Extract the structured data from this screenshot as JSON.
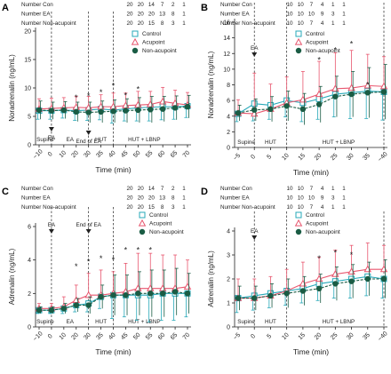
{
  "figure": {
    "colors": {
      "control": "#27a8b8",
      "acupoint": "#e8566e",
      "nonacupoint": "#1a5c44",
      "axis": "#222222"
    },
    "legend": {
      "control": "Control",
      "acupoint": "Acupoint",
      "nonacupoint": "Non-acupoint"
    },
    "count_labels": {
      "con": "Number Con",
      "ea": "Number EA",
      "non": "Number Non-acupoint"
    },
    "time_label": "Time (min)"
  },
  "chart_data": [
    {
      "panel": "A",
      "type": "line",
      "ylabel": "Noradrenalin (ng/mL)",
      "xlabel": "Time (min)",
      "ylim": [
        0,
        20
      ],
      "yticks": [
        0,
        5,
        10,
        15,
        20
      ],
      "x_categories": [
        "−10",
        "0",
        "10",
        "20",
        "30",
        "35",
        "40",
        "45",
        "50",
        "55",
        "60",
        "65",
        "70"
      ],
      "vlines": [
        1,
        4,
        6
      ],
      "phases": [
        {
          "label": "Supine",
          "x": 0.5
        },
        {
          "label": "EA",
          "x": 2.5
        },
        {
          "label": "HUT",
          "x": 5
        },
        {
          "label": "HUT + LBNP",
          "x": 8.5
        }
      ],
      "markers": [
        {
          "label": "EA",
          "x": 1
        },
        {
          "label": "End of EA",
          "x": 4
        }
      ],
      "counts": {
        "con": [
          "20",
          "20",
          "14",
          "7",
          "2",
          "1"
        ],
        "ea": [
          "20",
          "20",
          "20",
          "13",
          "8",
          "1"
        ],
        "non": [
          "20",
          "20",
          "15",
          "8",
          "3",
          "1"
        ]
      },
      "stars": [
        {
          "x": 3,
          "y": 8.3
        },
        {
          "x": 4,
          "y": 8.6
        },
        {
          "x": 5,
          "y": 9.2
        },
        {
          "x": 6,
          "y": 10.4
        },
        {
          "x": 7,
          "y": 8.7
        },
        {
          "x": 8,
          "y": 9.8
        }
      ],
      "series": [
        {
          "key": "control",
          "values": [
            6.0,
            6.0,
            6.1,
            6.0,
            6.1,
            6.3,
            6.1,
            6.3,
            6.5,
            6.6,
            6.7,
            6.7,
            6.8
          ],
          "err": [
            1.5,
            1.5,
            1.4,
            1.7,
            1.8,
            1.9,
            2.3,
            2.1,
            2.3,
            2.4,
            2.3,
            2.2,
            2.0
          ]
        },
        {
          "key": "acupoint",
          "values": [
            6.3,
            6.4,
            6.5,
            6.6,
            6.5,
            6.7,
            6.7,
            6.9,
            7.0,
            7.1,
            7.6,
            7.3,
            7.0
          ],
          "err": [
            1.8,
            1.8,
            1.8,
            1.9,
            2.0,
            2.1,
            2.4,
            2.2,
            2.4,
            2.3,
            2.5,
            2.3,
            2.2
          ]
        },
        {
          "key": "nonacupoint",
          "values": [
            6.1,
            6.0,
            6.1,
            5.8,
            5.7,
            5.8,
            5.9,
            6.0,
            6.1,
            6.2,
            6.3,
            6.5,
            6.7
          ],
          "err": [
            1.6,
            1.5,
            1.5,
            1.7,
            1.8,
            1.9,
            2.0,
            2.1,
            2.2,
            2.3,
            2.2,
            2.1,
            2.0
          ]
        }
      ]
    },
    {
      "panel": "B",
      "type": "line",
      "ylabel": "Noradrenalin (ng/mL)",
      "xlabel": "Time (min)",
      "ylim": [
        0,
        16
      ],
      "yticks": [
        0,
        2,
        4,
        6,
        8,
        10,
        12,
        14,
        16
      ],
      "x_categories": [
        "−5",
        "0",
        "5",
        "10",
        "15",
        "20",
        "25",
        "30",
        "35",
        "−40"
      ],
      "vlines": [
        1,
        3,
        9
      ],
      "phases": [
        {
          "label": "Supine",
          "x": 0.5
        },
        {
          "label": "HUT",
          "x": 2
        },
        {
          "label": "HUT + LBNP",
          "x": 6.2
        }
      ],
      "markers": [
        {
          "label": "EA",
          "x": 1
        }
      ],
      "counts": {
        "con": [
          "10",
          "10",
          "7",
          "4",
          "1",
          "1"
        ],
        "ea": [
          "10",
          "10",
          "10",
          "9",
          "3",
          "1"
        ],
        "non": [
          "10",
          "10",
          "7",
          "4",
          "1",
          "1"
        ]
      },
      "stars": [
        {
          "x": 5,
          "y": 11.2
        },
        {
          "x": 6,
          "y": 12.4
        },
        {
          "x": 7,
          "y": 13.2
        },
        {
          "x": 8,
          "y": 8.0
        }
      ],
      "series": [
        {
          "key": "control",
          "values": [
            4.3,
            5.6,
            5.4,
            6.0,
            5.7,
            6.2,
            6.8,
            7.0,
            7.2,
            7.1
          ],
          "err": [
            1.0,
            2.2,
            1.8,
            2.1,
            2.4,
            2.6,
            2.9,
            3.3,
            3.5,
            3.6
          ]
        },
        {
          "key": "acupoint",
          "values": [
            4.4,
            4.3,
            4.9,
            5.7,
            6.1,
            6.8,
            7.5,
            7.6,
            7.9,
            7.8
          ],
          "err": [
            1.7,
            5.2,
            3.2,
            3.3,
            3.6,
            4.2,
            4.6,
            4.8,
            4.0,
            3.8
          ]
        },
        {
          "key": "nonacupoint",
          "values": [
            4.4,
            4.8,
            4.9,
            5.3,
            4.9,
            5.5,
            6.5,
            6.8,
            7.0,
            7.1
          ],
          "err": [
            1.0,
            1.4,
            1.6,
            1.9,
            2.0,
            2.3,
            2.6,
            2.9,
            3.2,
            3.5
          ]
        }
      ]
    },
    {
      "panel": "C",
      "type": "line",
      "ylabel": "Adrenalin (ng/mL)",
      "xlabel": "Time (min)",
      "ylim": [
        0,
        6
      ],
      "yticks": [
        0,
        2,
        4,
        6
      ],
      "x_categories": [
        "−10",
        "0",
        "10",
        "20",
        "30",
        "35",
        "40",
        "45",
        "50",
        "55",
        "60",
        "65",
        "70"
      ],
      "vlines": [
        1,
        4,
        6
      ],
      "phases": [
        {
          "label": "Supine",
          "x": 0.5
        },
        {
          "label": "EA",
          "x": 2.5
        },
        {
          "label": "HUT",
          "x": 5
        },
        {
          "label": "HUT + LBNP",
          "x": 8.5
        }
      ],
      "markers": [
        {
          "label": "EA",
          "x": 1
        },
        {
          "label": "End of EA",
          "x": 4
        }
      ],
      "counts": {
        "con": [
          "20",
          "20",
          "14",
          "7",
          "2",
          "1"
        ],
        "ea": [
          "20",
          "20",
          "20",
          "13",
          "8",
          "1"
        ],
        "non": [
          "20",
          "20",
          "15",
          "8",
          "3",
          "1"
        ]
      },
      "stars": [
        {
          "x": 3,
          "y": 3.6
        },
        {
          "x": 4,
          "y": 3.9
        },
        {
          "x": 5,
          "y": 4.1
        },
        {
          "x": 6,
          "y": 4.0
        },
        {
          "x": 7,
          "y": 4.6
        },
        {
          "x": 8,
          "y": 4.6
        },
        {
          "x": 9,
          "y": 4.6
        }
      ],
      "series": [
        {
          "key": "control",
          "values": [
            1.0,
            1.0,
            1.1,
            1.3,
            1.4,
            1.8,
            1.9,
            1.9,
            1.9,
            1.9,
            2.0,
            2.0,
            2.0
          ],
          "err": [
            0.2,
            0.2,
            0.3,
            0.4,
            0.5,
            0.7,
            1.4,
            1.3,
            1.5,
            1.6,
            1.6,
            1.6,
            1.4
          ]
        },
        {
          "key": "acupoint",
          "values": [
            1.1,
            1.1,
            1.2,
            1.6,
            1.9,
            1.9,
            2.0,
            2.1,
            2.3,
            2.3,
            2.3,
            2.3,
            2.4
          ],
          "err": [
            0.3,
            0.3,
            0.6,
            0.9,
            1.3,
            1.5,
            1.3,
            1.7,
            2.1,
            2.1,
            2.0,
            2.0,
            1.6
          ]
        },
        {
          "key": "nonacupoint",
          "values": [
            1.0,
            1.0,
            1.1,
            1.3,
            1.3,
            1.8,
            1.9,
            1.9,
            2.0,
            2.0,
            2.0,
            2.1,
            2.0
          ],
          "err": [
            0.2,
            0.2,
            0.3,
            0.4,
            0.5,
            0.7,
            1.2,
            1.2,
            1.3,
            1.4,
            1.4,
            1.4,
            1.2
          ]
        }
      ]
    },
    {
      "panel": "D",
      "type": "line",
      "ylabel": "Adrenalin (ng/mL)",
      "xlabel": "Time (min)",
      "ylim": [
        0,
        4
      ],
      "yticks": [
        0,
        1,
        2,
        3,
        4
      ],
      "x_categories": [
        "−5",
        "0",
        "5",
        "10",
        "15",
        "20",
        "25",
        "30",
        "35",
        "−40"
      ],
      "vlines": [
        1,
        3,
        9
      ],
      "phases": [
        {
          "label": "Supine",
          "x": 0.5
        },
        {
          "label": "HUT",
          "x": 2
        },
        {
          "label": "HUT + LBNP",
          "x": 6.2
        }
      ],
      "markers": [
        {
          "label": "EA",
          "x": 1
        }
      ],
      "counts": {
        "con": [
          "10",
          "10",
          "7",
          "4",
          "1",
          "1"
        ],
        "ea": [
          "10",
          "10",
          "10",
          "9",
          "3",
          "1"
        ],
        "non": [
          "10",
          "10",
          "7",
          "4",
          "1",
          "1"
        ]
      },
      "stars": [
        {
          "x": 5,
          "y": 2.85
        },
        {
          "x": 6,
          "y": 3.1
        },
        {
          "x": 7,
          "y": 3.0
        }
      ],
      "series": [
        {
          "key": "control",
          "values": [
            1.2,
            1.3,
            1.4,
            1.5,
            1.6,
            1.8,
            1.9,
            2.0,
            2.1,
            2.0
          ],
          "err": [
            0.6,
            0.6,
            0.6,
            0.6,
            0.6,
            0.7,
            0.7,
            0.8,
            0.8,
            0.8
          ]
        },
        {
          "key": "acupoint",
          "values": [
            1.2,
            1.2,
            1.3,
            1.5,
            1.8,
            2.0,
            2.2,
            2.3,
            2.4,
            2.4
          ],
          "err": [
            0.8,
            0.8,
            0.8,
            0.9,
            0.9,
            0.9,
            1.0,
            1.1,
            1.1,
            1.0
          ]
        },
        {
          "key": "nonacupoint",
          "values": [
            1.2,
            1.2,
            1.3,
            1.4,
            1.5,
            1.6,
            1.8,
            1.9,
            2.0,
            2.0
          ],
          "err": [
            0.5,
            0.5,
            0.5,
            0.6,
            0.6,
            0.6,
            0.7,
            0.7,
            0.7,
            0.8
          ]
        }
      ]
    }
  ]
}
